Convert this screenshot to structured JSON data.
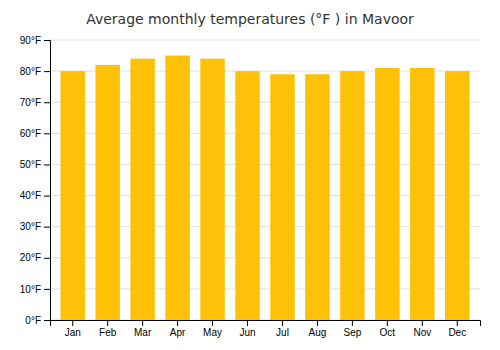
{
  "chart_data": {
    "type": "bar",
    "title": "Average monthly temperatures (°F ) in Mavoor",
    "categories": [
      "Jan",
      "Feb",
      "Mar",
      "Apr",
      "May",
      "Jun",
      "Jul",
      "Aug",
      "Sep",
      "Oct",
      "Nov",
      "Dec"
    ],
    "values": [
      80,
      82,
      84,
      85,
      84,
      80,
      79,
      79,
      80,
      81,
      81,
      80
    ],
    "color": "#FFC107",
    "ylim": [
      0,
      90
    ],
    "yticks": [
      {
        "value": 0,
        "label": "0°F"
      },
      {
        "value": 10,
        "label": "10°F"
      },
      {
        "value": 20,
        "label": "20°F"
      },
      {
        "value": 30,
        "label": "30°F"
      },
      {
        "value": 40,
        "label": "40°F"
      },
      {
        "value": 50,
        "label": "50°F"
      },
      {
        "value": 60,
        "label": "60°F"
      },
      {
        "value": 70,
        "label": "70°F"
      },
      {
        "value": 80,
        "label": "80°F"
      },
      {
        "value": 90,
        "label": "90°F"
      }
    ],
    "grid": true
  }
}
